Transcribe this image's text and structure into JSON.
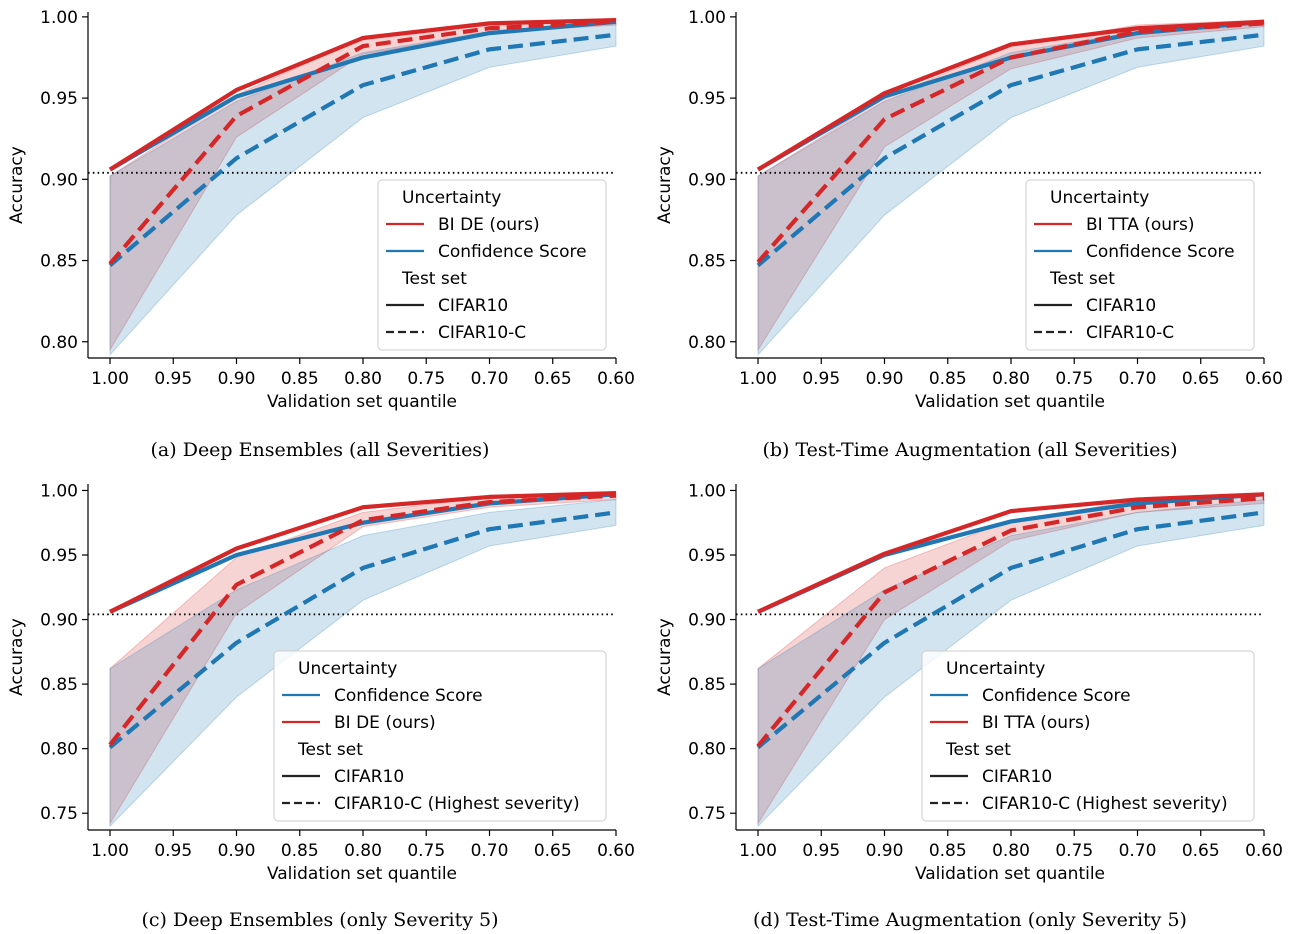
{
  "colors": {
    "red": "#d62728",
    "blue": "#1f77b4"
  },
  "chart_data": [
    {
      "type": "line",
      "caption": "(a) Deep Ensembles (all Severities)",
      "xlabel": "Validation set quantile",
      "ylabel": "Accuracy",
      "x": [
        1.0,
        0.9,
        0.8,
        0.7,
        0.6
      ],
      "xticks": [
        "1.00",
        "0.95",
        "0.90",
        "0.85",
        "0.80",
        "0.75",
        "0.70",
        "0.65",
        "0.60"
      ],
      "xlim": [
        1.0,
        0.6
      ],
      "yticks": [
        "0.80",
        "0.85",
        "0.90",
        "0.95",
        "1.00"
      ],
      "ylim": [
        0.79,
        1.003
      ],
      "reference_line": 0.904,
      "series": [
        {
          "method": "bi",
          "test": "CIFAR10",
          "values": [
            0.906,
            0.955,
            0.987,
            0.996,
            0.998
          ]
        },
        {
          "method": "conf",
          "test": "CIFAR10",
          "values": [
            0.906,
            0.951,
            0.975,
            0.99,
            0.997
          ]
        },
        {
          "method": "bi",
          "test": "CIFAR10-C",
          "values": [
            0.848,
            0.939,
            0.982,
            0.993,
            0.997
          ],
          "band": [
            [
              0.795,
              0.902
            ],
            [
              0.926,
              0.952
            ],
            [
              0.977,
              0.987
            ],
            [
              0.99,
              0.996
            ],
            [
              0.995,
              0.999
            ]
          ]
        },
        {
          "method": "conf",
          "test": "CIFAR10-C",
          "values": [
            0.847,
            0.913,
            0.958,
            0.98,
            0.989
          ],
          "band": [
            [
              0.792,
              0.902
            ],
            [
              0.878,
              0.948
            ],
            [
              0.938,
              0.978
            ],
            [
              0.969,
              0.991
            ],
            [
              0.982,
              0.996
            ]
          ]
        }
      ],
      "legend": [
        {
          "kind": "title",
          "text": "Uncertainty"
        },
        {
          "kind": "color",
          "color": "red",
          "text": "BI DE (ours)"
        },
        {
          "kind": "color",
          "color": "blue",
          "text": "Confidence Score"
        },
        {
          "kind": "title",
          "text": "Test set"
        },
        {
          "kind": "solid",
          "text": "CIFAR10"
        },
        {
          "kind": "dashed",
          "text": "CIFAR10-C"
        }
      ],
      "legend_position": "lower-right"
    },
    {
      "type": "line",
      "caption": "(b) Test-Time Augmentation (all Severities)",
      "xlabel": "Validation set quantile",
      "ylabel": "Accuracy",
      "x": [
        1.0,
        0.9,
        0.8,
        0.7,
        0.6
      ],
      "xticks": [
        "1.00",
        "0.95",
        "0.90",
        "0.85",
        "0.80",
        "0.75",
        "0.70",
        "0.65",
        "0.60"
      ],
      "xlim": [
        1.0,
        0.6
      ],
      "yticks": [
        "0.80",
        "0.85",
        "0.90",
        "0.95",
        "1.00"
      ],
      "ylim": [
        0.79,
        1.003
      ],
      "reference_line": 0.904,
      "series": [
        {
          "method": "bi",
          "test": "CIFAR10",
          "values": [
            0.906,
            0.953,
            0.983,
            0.993,
            0.997
          ]
        },
        {
          "method": "conf",
          "test": "CIFAR10",
          "values": [
            0.906,
            0.951,
            0.975,
            0.99,
            0.997
          ]
        },
        {
          "method": "bi",
          "test": "CIFAR10-C",
          "values": [
            0.849,
            0.937,
            0.975,
            0.991,
            0.996
          ],
          "band": [
            [
              0.795,
              0.902
            ],
            [
              0.92,
              0.95
            ],
            [
              0.968,
              0.982
            ],
            [
              0.987,
              0.995
            ],
            [
              0.994,
              0.998
            ]
          ]
        },
        {
          "method": "conf",
          "test": "CIFAR10-C",
          "values": [
            0.847,
            0.913,
            0.958,
            0.98,
            0.989
          ],
          "band": [
            [
              0.792,
              0.902
            ],
            [
              0.878,
              0.948
            ],
            [
              0.938,
              0.978
            ],
            [
              0.969,
              0.991
            ],
            [
              0.982,
              0.996
            ]
          ]
        }
      ],
      "legend": [
        {
          "kind": "title",
          "text": "Uncertainty"
        },
        {
          "kind": "color",
          "color": "red",
          "text": "BI TTA (ours)"
        },
        {
          "kind": "color",
          "color": "blue",
          "text": "Confidence Score"
        },
        {
          "kind": "title",
          "text": "Test set"
        },
        {
          "kind": "solid",
          "text": "CIFAR10"
        },
        {
          "kind": "dashed",
          "text": "CIFAR10-C"
        }
      ],
      "legend_position": "lower-right"
    },
    {
      "type": "line",
      "caption": "(c) Deep Ensembles (only Severity 5)",
      "xlabel": "Validation set quantile",
      "ylabel": "Accuracy",
      "x": [
        1.0,
        0.9,
        0.8,
        0.7,
        0.6
      ],
      "xticks": [
        "1.00",
        "0.95",
        "0.90",
        "0.85",
        "0.80",
        "0.75",
        "0.70",
        "0.65",
        "0.60"
      ],
      "xlim": [
        1.0,
        0.6
      ],
      "yticks": [
        "0.75",
        "0.80",
        "0.85",
        "0.90",
        "0.95",
        "1.00"
      ],
      "ylim": [
        0.737,
        1.005
      ],
      "reference_line": 0.904,
      "series": [
        {
          "method": "bi",
          "test": "CIFAR10",
          "values": [
            0.906,
            0.955,
            0.987,
            0.995,
            0.998
          ]
        },
        {
          "method": "conf",
          "test": "CIFAR10",
          "values": [
            0.906,
            0.95,
            0.975,
            0.99,
            0.997
          ]
        },
        {
          "method": "bi",
          "test": "CIFAR10-C (Highest severity)",
          "values": [
            0.803,
            0.927,
            0.977,
            0.991,
            0.996
          ],
          "band": [
            [
              0.742,
              0.862
            ],
            [
              0.905,
              0.948
            ],
            [
              0.972,
              0.983
            ],
            [
              0.987,
              0.995
            ],
            [
              0.993,
              0.999
            ]
          ]
        },
        {
          "method": "conf",
          "test": "CIFAR10-C (Highest severity)",
          "values": [
            0.801,
            0.882,
            0.94,
            0.97,
            0.983
          ],
          "band": [
            [
              0.74,
              0.862
            ],
            [
              0.84,
              0.923
            ],
            [
              0.915,
              0.965
            ],
            [
              0.957,
              0.983
            ],
            [
              0.973,
              0.993
            ]
          ]
        }
      ],
      "legend": [
        {
          "kind": "title",
          "text": "Uncertainty"
        },
        {
          "kind": "color",
          "color": "blue",
          "text": "Confidence Score"
        },
        {
          "kind": "color",
          "color": "red",
          "text": "BI DE (ours)"
        },
        {
          "kind": "title",
          "text": "Test set"
        },
        {
          "kind": "solid",
          "text": "CIFAR10"
        },
        {
          "kind": "dashed",
          "text": "CIFAR10-C (Highest severity)"
        }
      ],
      "legend_position": "lower-right"
    },
    {
      "type": "line",
      "caption": "(d) Test-Time Augmentation (only Severity 5)",
      "xlabel": "Validation set quantile",
      "ylabel": "Accuracy",
      "x": [
        1.0,
        0.9,
        0.8,
        0.7,
        0.6
      ],
      "xticks": [
        "1.00",
        "0.95",
        "0.90",
        "0.85",
        "0.80",
        "0.75",
        "0.70",
        "0.65",
        "0.60"
      ],
      "xlim": [
        1.0,
        0.6
      ],
      "yticks": [
        "0.75",
        "0.80",
        "0.85",
        "0.90",
        "0.95",
        "1.00"
      ],
      "ylim": [
        0.737,
        1.005
      ],
      "reference_line": 0.904,
      "series": [
        {
          "method": "bi",
          "test": "CIFAR10",
          "values": [
            0.906,
            0.951,
            0.984,
            0.993,
            0.997
          ]
        },
        {
          "method": "conf",
          "test": "CIFAR10",
          "values": [
            0.906,
            0.95,
            0.976,
            0.99,
            0.997
          ]
        },
        {
          "method": "bi",
          "test": "CIFAR10-C (Highest severity)",
          "values": [
            0.802,
            0.921,
            0.969,
            0.987,
            0.994
          ],
          "band": [
            [
              0.742,
              0.862
            ],
            [
              0.9,
              0.94
            ],
            [
              0.961,
              0.977
            ],
            [
              0.983,
              0.992
            ],
            [
              0.99,
              0.998
            ]
          ]
        },
        {
          "method": "conf",
          "test": "CIFAR10-C (Highest severity)",
          "values": [
            0.801,
            0.882,
            0.94,
            0.97,
            0.983
          ],
          "band": [
            [
              0.74,
              0.862
            ],
            [
              0.84,
              0.923
            ],
            [
              0.915,
              0.965
            ],
            [
              0.957,
              0.983
            ],
            [
              0.973,
              0.993
            ]
          ]
        }
      ],
      "legend": [
        {
          "kind": "title",
          "text": "Uncertainty"
        },
        {
          "kind": "color",
          "color": "blue",
          "text": "Confidence Score"
        },
        {
          "kind": "color",
          "color": "red",
          "text": "BI TTA (ours)"
        },
        {
          "kind": "title",
          "text": "Test set"
        },
        {
          "kind": "solid",
          "text": "CIFAR10"
        },
        {
          "kind": "dashed",
          "text": "CIFAR10-C (Highest severity)"
        }
      ],
      "legend_position": "lower-right"
    }
  ]
}
